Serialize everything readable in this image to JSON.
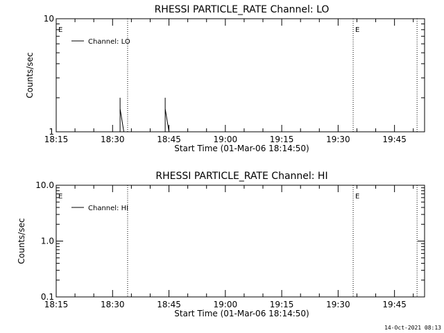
{
  "chart_data": [
    {
      "type": "line",
      "title": "RHESSI PARTICLE_RATE Channel: LO",
      "xlabel": "Start Time (01-Mar-06 18:14:50)",
      "ylabel": "Counts/sec",
      "y_scale": "log",
      "ylim": [
        1,
        10
      ],
      "xlim": [
        "18:15",
        "19:53"
      ],
      "x_ticks": [
        "18:15",
        "18:30",
        "18:45",
        "19:00",
        "19:15",
        "19:30",
        "19:45"
      ],
      "y_ticks": [
        "1",
        "10"
      ],
      "legend": {
        "label": "Channel: LO",
        "position": "top-left"
      },
      "event_marker_label": "E",
      "event_markers": [
        "18:15",
        "19:34"
      ],
      "dotted_lines": [
        "18:34",
        "19:34",
        "19:51"
      ],
      "series": [
        {
          "x": [
            "18:15",
            "18:32",
            "18:32",
            "18:32",
            "18:33",
            "18:44",
            "18:44",
            "18:44",
            "18:45",
            "19:53"
          ],
          "values": [
            1,
            1,
            2,
            1.6,
            1,
            1,
            2,
            1.6,
            1,
            1
          ]
        }
      ]
    },
    {
      "type": "line",
      "title": "RHESSI PARTICLE_RATE Channel: HI",
      "xlabel": "Start Time (01-Mar-06 18:14:50)",
      "ylabel": "Counts/sec",
      "y_scale": "log",
      "ylim": [
        0.1,
        10
      ],
      "xlim": [
        "18:15",
        "19:53"
      ],
      "x_ticks": [
        "18:15",
        "18:30",
        "18:45",
        "19:00",
        "19:15",
        "19:30",
        "19:45"
      ],
      "y_ticks": [
        "0.1",
        "1.0",
        "10.0"
      ],
      "legend": {
        "label": "Channel: HI",
        "position": "top-left"
      },
      "event_marker_label": "E",
      "event_markers": [
        "18:15",
        "19:34"
      ],
      "dotted_lines": [
        "18:34",
        "19:34",
        "19:51"
      ],
      "series": []
    }
  ],
  "timestamp": "14-Oct-2021 08:13"
}
